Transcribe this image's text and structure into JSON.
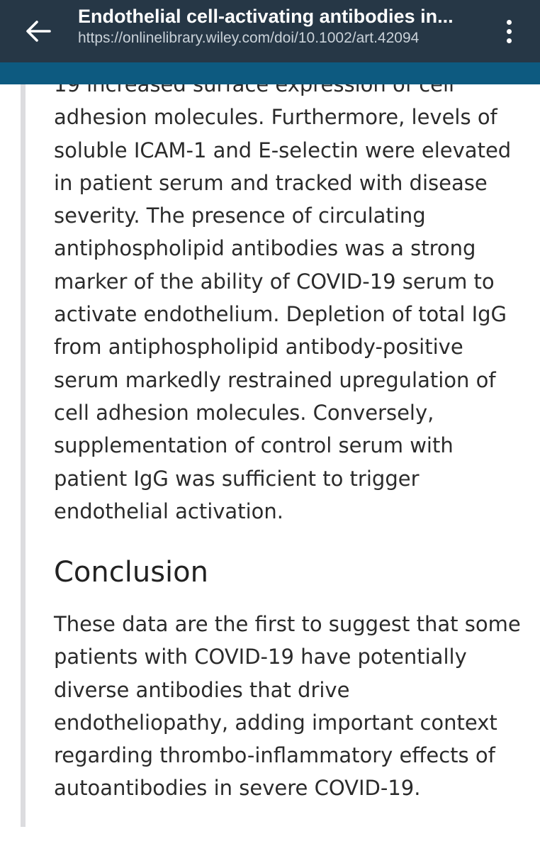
{
  "header": {
    "title": "Endothelial cell-activating antibodies in...",
    "url": "https://onlinelibrary.wiley.com/doi/10.1002/art.42094",
    "back_icon": "arrow-left-icon",
    "menu_icon": "more-vertical-icon"
  },
  "colors": {
    "header_bg": "#263746",
    "accent_strip": "#0d5a80",
    "text": "#2b2b2b",
    "left_rule": "#dcdcdf"
  },
  "article": {
    "results_paragraph": "19 increased surface expression of cell adhesion molecules. Furthermore, levels of soluble ICAM-1 and E-selectin were elevated in patient serum and tracked with disease severity. The presence of circulating antiphospholipid antibodies was a strong marker of the ability of COVID-19 serum to activate endothelium. Depletion of total IgG from antiphospholipid antibody-positive serum markedly restrained upregulation of cell adhesion molecules. Conversely, supplementation of control serum with patient IgG was sufficient to trigger endothelial activation.",
    "conclusion_heading": "Conclusion",
    "conclusion_paragraph": "These data are the first to suggest that some patients with COVID-19 have potentially diverse antibodies that drive endotheliopathy, adding important context regarding thrombo-inflammatory effects of autoantibodies in severe COVID-19."
  }
}
